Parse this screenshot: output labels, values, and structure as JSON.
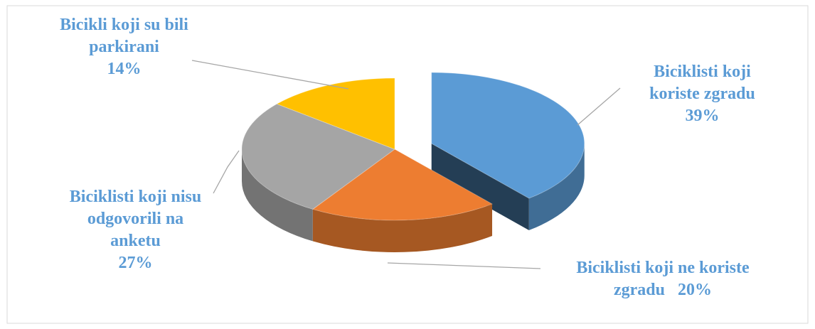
{
  "chart_data": {
    "type": "pie3d",
    "categories": [
      "Biciklisti koji koriste zgradu",
      "Biciklisti koji ne koriste zgradu",
      "Biciklisti koji nisu odgovorili na anketu",
      "Bicikli koji su bili parkirani"
    ],
    "values": [
      39,
      20,
      27,
      14
    ],
    "value_labels": [
      "39%",
      "20%",
      "27%",
      "14%"
    ],
    "colors": [
      "#5b9bd5",
      "#ed7d31",
      "#a5a5a5",
      "#ffc000"
    ],
    "exploded": [
      true,
      false,
      false,
      false
    ],
    "label_color": "#5b9bd5"
  }
}
